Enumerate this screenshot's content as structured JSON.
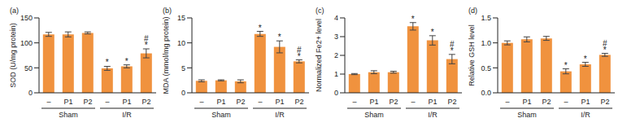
{
  "chart_data": [
    {
      "type": "bar",
      "title": "(a)",
      "y_label": "SOD (U/mg protein)",
      "categories": [
        "–",
        "P1",
        "P2",
        "–",
        "P1",
        "P2"
      ],
      "groups": [
        "Sham",
        "I/R"
      ],
      "values": [
        117,
        117,
        120,
        49,
        53,
        79
      ],
      "errors": [
        4,
        5,
        2,
        4,
        3,
        9
      ],
      "annotations": [
        [],
        [],
        [],
        [
          "*"
        ],
        [
          "*"
        ],
        [
          "#",
          "*"
        ]
      ],
      "color": "#f0923e",
      "ylim": [
        0,
        150
      ],
      "yticks": [
        0,
        50,
        100,
        150
      ]
    },
    {
      "type": "bar",
      "title": "(b)",
      "y_label": "MDA (mmol/mg protein)",
      "categories": [
        "–",
        "P1",
        "P2",
        "–",
        "P1",
        "P2"
      ],
      "groups": [
        "Sham",
        "I/R"
      ],
      "values": [
        2.4,
        2.5,
        2.3,
        11.8,
        9.2,
        6.3
      ],
      "errors": [
        0.2,
        0.1,
        0.3,
        0.5,
        1.2,
        0.3
      ],
      "annotations": [
        [],
        [],
        [],
        [
          "*"
        ],
        [
          "*"
        ],
        [
          "#",
          "*"
        ]
      ],
      "color": "#f0923e",
      "ylim": [
        0,
        15
      ],
      "yticks": [
        0,
        5,
        10,
        15
      ]
    },
    {
      "type": "bar",
      "title": "(c)",
      "y_label": "Normalized Fe2+ level",
      "categories": [
        "–",
        "P1",
        "P2",
        "–",
        "P1",
        "P2"
      ],
      "groups": [
        "Sham",
        "I/R"
      ],
      "values": [
        1.0,
        1.1,
        1.1,
        3.55,
        2.8,
        1.8
      ],
      "errors": [
        0.03,
        0.08,
        0.05,
        0.2,
        0.25,
        0.25
      ],
      "annotations": [
        [],
        [],
        [],
        [
          "*"
        ],
        [
          "*"
        ],
        [
          "#",
          "*"
        ]
      ],
      "color": "#f0923e",
      "ylim": [
        0,
        4
      ],
      "yticks": [
        0,
        1,
        2,
        3,
        4
      ]
    },
    {
      "type": "bar",
      "title": "(d)",
      "y_label": "Relative GSH level",
      "categories": [
        "–",
        "P1",
        "P2",
        "–",
        "P1",
        "P2"
      ],
      "groups": [
        "Sham",
        "I/R"
      ],
      "values": [
        1.0,
        1.07,
        1.09,
        0.43,
        0.57,
        0.76
      ],
      "errors": [
        0.04,
        0.05,
        0.04,
        0.05,
        0.04,
        0.03
      ],
      "annotations": [
        [],
        [],
        [],
        [
          "*"
        ],
        [
          "*"
        ],
        [
          "#",
          "*"
        ]
      ],
      "color": "#f0923e",
      "ylim": [
        0,
        1.5
      ],
      "yticks": [
        {
          "value": 0,
          "label": "0.0"
        },
        {
          "value": 0.5,
          "label": "0.5"
        },
        {
          "value": 1.0,
          "label": "1.0"
        },
        {
          "value": 1.5,
          "label": "1.5"
        }
      ]
    }
  ]
}
